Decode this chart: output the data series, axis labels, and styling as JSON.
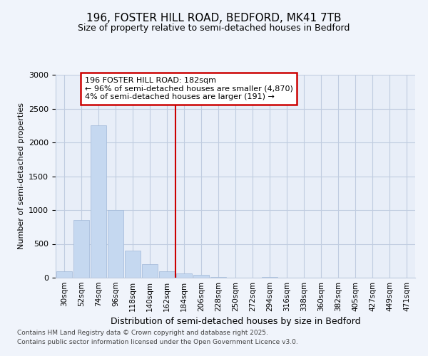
{
  "title_line1": "196, FOSTER HILL ROAD, BEDFORD, MK41 7TB",
  "title_line2": "Size of property relative to semi-detached houses in Bedford",
  "xlabel": "Distribution of semi-detached houses by size in Bedford",
  "ylabel": "Number of semi-detached properties",
  "annotation_line1": "196 FOSTER HILL ROAD: 182sqm",
  "annotation_line2": "← 96% of semi-detached houses are smaller (4,870)",
  "annotation_line3": "4% of semi-detached houses are larger (191) →",
  "footer_line1": "Contains HM Land Registry data © Crown copyright and database right 2025.",
  "footer_line2": "Contains public sector information licensed under the Open Government Licence v3.0.",
  "bins": [
    "30sqm",
    "52sqm",
    "74sqm",
    "96sqm",
    "118sqm",
    "140sqm",
    "162sqm",
    "184sqm",
    "206sqm",
    "228sqm",
    "250sqm",
    "272sqm",
    "294sqm",
    "316sqm",
    "338sqm",
    "360sqm",
    "382sqm",
    "405sqm",
    "427sqm",
    "449sqm",
    "471sqm"
  ],
  "values": [
    100,
    850,
    2250,
    1000,
    400,
    200,
    100,
    60,
    40,
    10,
    0,
    0,
    10,
    0,
    0,
    0,
    0,
    0,
    0,
    0,
    0
  ],
  "bar_color": "#c5d8f0",
  "vline_pos": 7,
  "vline_color": "#cc0000",
  "ylim": [
    0,
    3000
  ],
  "yticks": [
    0,
    500,
    1000,
    1500,
    2000,
    2500,
    3000
  ],
  "background_color": "#f0f4fb",
  "plot_bg_color": "#e8eef8",
  "grid_color": "#c0cce0",
  "ann_bg": "#ffffff",
  "ann_edge": "#cc0000"
}
